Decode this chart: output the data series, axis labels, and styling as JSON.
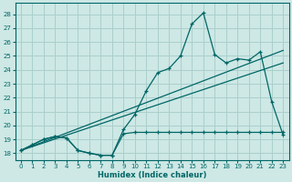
{
  "xlabel": "Humidex (Indice chaleur)",
  "bg_color": "#cde8e5",
  "grid_color": "#aacfcc",
  "line_color": "#006666",
  "xlim": [
    -0.5,
    23.5
  ],
  "ylim": [
    17.5,
    28.8
  ],
  "xticks": [
    0,
    1,
    2,
    3,
    4,
    5,
    6,
    7,
    8,
    9,
    10,
    11,
    12,
    13,
    14,
    15,
    16,
    17,
    18,
    19,
    20,
    21,
    22,
    23
  ],
  "yticks": [
    18,
    19,
    20,
    21,
    22,
    23,
    24,
    25,
    26,
    27,
    28
  ],
  "curve_main_x": [
    0,
    1,
    2,
    3,
    4,
    5,
    6,
    7,
    8,
    9,
    10,
    11,
    12,
    13,
    14,
    15,
    16,
    17,
    18,
    19,
    20,
    21,
    22,
    23
  ],
  "curve_main_y": [
    18.2,
    18.6,
    19.0,
    19.2,
    19.1,
    18.2,
    18.0,
    17.85,
    17.85,
    19.7,
    20.8,
    22.5,
    23.8,
    24.1,
    25.0,
    27.3,
    28.1,
    25.1,
    24.5,
    24.8,
    24.7,
    25.3,
    21.7,
    19.3
  ],
  "curve_flat_x": [
    0,
    1,
    2,
    3,
    4,
    5,
    6,
    7,
    8,
    9,
    10,
    11,
    12,
    13,
    14,
    15,
    16,
    17,
    18,
    19,
    20,
    21,
    22,
    23
  ],
  "curve_flat_y": [
    18.2,
    18.6,
    19.0,
    19.2,
    19.1,
    18.2,
    18.0,
    17.85,
    17.85,
    19.4,
    19.5,
    19.5,
    19.5,
    19.5,
    19.5,
    19.5,
    19.5,
    19.5,
    19.5,
    19.5,
    19.5,
    19.5,
    19.5,
    19.5
  ],
  "line1_x": [
    0,
    23
  ],
  "line1_y": [
    18.2,
    24.5
  ],
  "line2_x": [
    0,
    23
  ],
  "line2_y": [
    18.2,
    25.4
  ]
}
